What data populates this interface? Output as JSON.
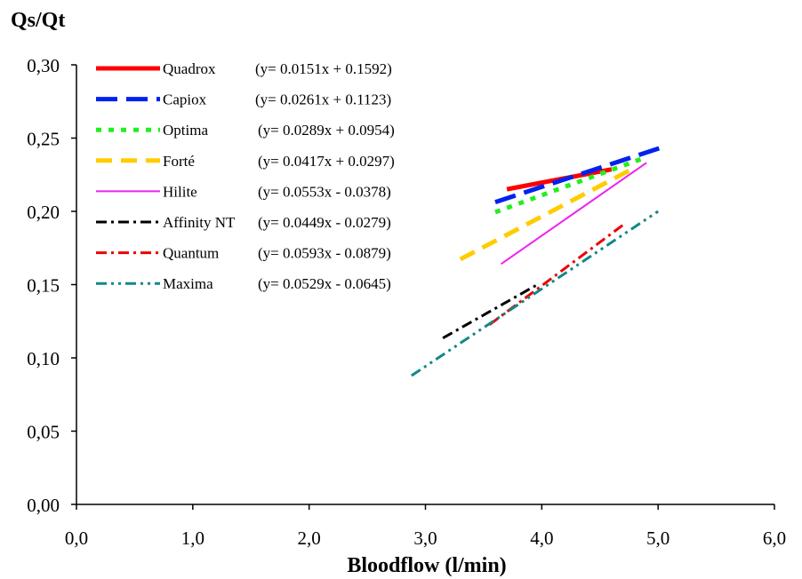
{
  "chart_data": {
    "type": "line",
    "ylabel": "Qs/Qt",
    "xlabel": "Bloodflow (l/min)",
    "xlim": [
      0,
      6
    ],
    "ylim": [
      0,
      0.3
    ],
    "xticks": [
      {
        "v": 0,
        "label": "0,0"
      },
      {
        "v": 1,
        "label": "1,0"
      },
      {
        "v": 2,
        "label": "2,0"
      },
      {
        "v": 3,
        "label": "3,0"
      },
      {
        "v": 4,
        "label": "4,0"
      },
      {
        "v": 5,
        "label": "5,0"
      },
      {
        "v": 6,
        "label": "6,0"
      }
    ],
    "yticks": [
      {
        "v": 0,
        "label": "0,00"
      },
      {
        "v": 0.05,
        "label": "0,05"
      },
      {
        "v": 0.1,
        "label": "0,10"
      },
      {
        "v": 0.15,
        "label": "0,15"
      },
      {
        "v": 0.2,
        "label": "0,20"
      },
      {
        "v": 0.25,
        "label": "0,25"
      },
      {
        "v": 0.3,
        "label": "0,30"
      }
    ],
    "grid": false,
    "legend_position": "top-left",
    "series": [
      {
        "name": "Quadrox",
        "equation": "(y= 0.0151x + 0.1592)",
        "slope": 0.0151,
        "intercept": 0.1592,
        "x": [
          3.7,
          4.6
        ],
        "color": "#ff0000",
        "dash": "solid",
        "width": "thick"
      },
      {
        "name": "Capiox",
        "equation": "(y= 0.0261x + 0.1123)",
        "slope": 0.0261,
        "intercept": 0.1123,
        "x": [
          3.6,
          5.05
        ],
        "color": "#0022ee",
        "dash": "long-dash",
        "width": "thick"
      },
      {
        "name": "Optima",
        "equation": "(y= 0.0289x + 0.0954)",
        "slope": 0.0289,
        "intercept": 0.0954,
        "x": [
          3.6,
          4.85
        ],
        "color": "#22ee22",
        "dash": "dot",
        "width": "thick"
      },
      {
        "name": "Forté",
        "equation": "(y= 0.0417x + 0.0297)",
        "slope": 0.0417,
        "intercept": 0.0297,
        "x": [
          3.3,
          4.75
        ],
        "color": "#ffcc00",
        "dash": "dash",
        "width": "thick"
      },
      {
        "name": "Hilite",
        "equation": "(y= 0.0553x - 0.0378)",
        "slope": 0.0553,
        "intercept": -0.0378,
        "x": [
          3.65,
          4.9
        ],
        "color": "#ee22ee",
        "dash": "solid",
        "width": "thin"
      },
      {
        "name": "Affinity NT",
        "equation": "(y= 0.0449x - 0.0279)",
        "slope": 0.0449,
        "intercept": -0.0279,
        "x": [
          3.15,
          3.95
        ],
        "color": "#000000",
        "dash": "dash-dot",
        "width": "medium"
      },
      {
        "name": "Quantum",
        "equation": "(y= 0.0593x - 0.0879)",
        "slope": 0.0593,
        "intercept": -0.0879,
        "x": [
          3.55,
          4.7
        ],
        "color": "#ee0000",
        "dash": "dash-dot",
        "width": "medium"
      },
      {
        "name": "Maxima",
        "equation": "(y= 0.0529x - 0.0645)",
        "slope": 0.0529,
        "intercept": -0.0645,
        "x": [
          2.88,
          5.0
        ],
        "color": "#118888",
        "dash": "dash-dot-dot",
        "width": "medium"
      }
    ]
  }
}
